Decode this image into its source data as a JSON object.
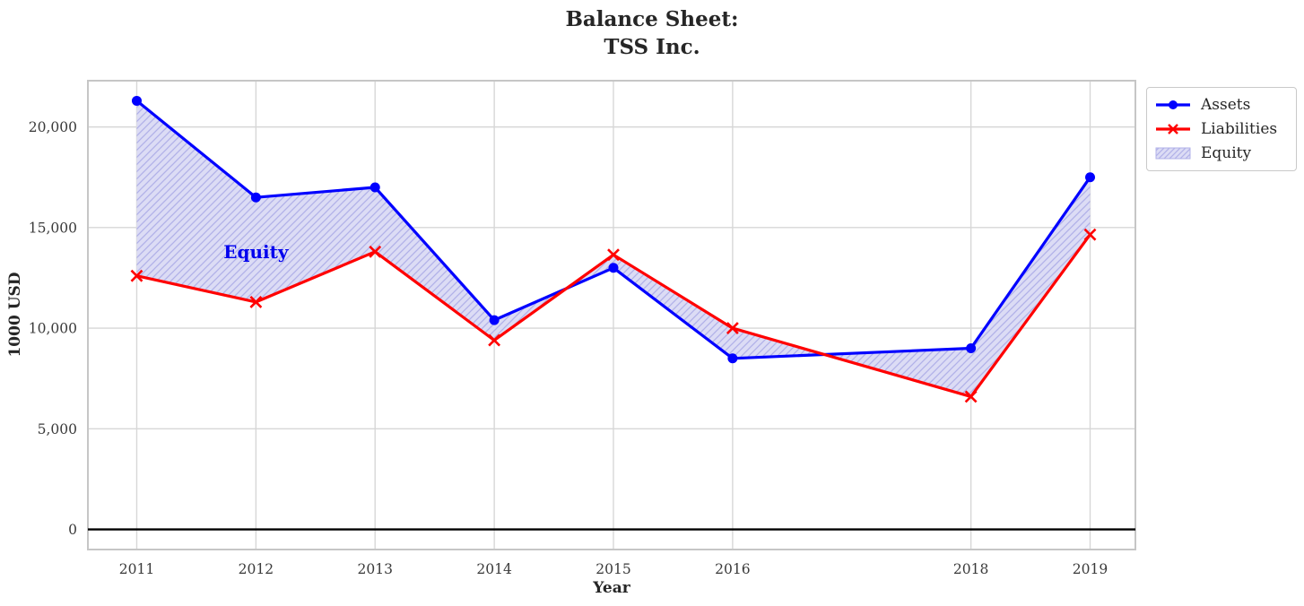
{
  "figure": {
    "title_lines": [
      "Balance Sheet:",
      "TSS Inc."
    ]
  },
  "chart_data": {
    "type": "line",
    "title": "Balance Sheet:\nTSS Inc.",
    "xlabel": "Year",
    "ylabel": "1000 USD",
    "x": [
      2011,
      2012,
      2013,
      2014,
      2015,
      2016,
      2018,
      2019
    ],
    "series": [
      {
        "name": "Assets",
        "color": "#0000ff",
        "marker": "circle",
        "values": [
          21300,
          16500,
          17000,
          10400,
          13000,
          8500,
          9000,
          17500
        ]
      },
      {
        "name": "Liabilities",
        "color": "#ff0000",
        "marker": "x",
        "values": [
          12600,
          11300,
          13800,
          9400,
          13650,
          10000,
          6600,
          14650
        ]
      }
    ],
    "fill_between": {
      "name": "Equity",
      "between": [
        "Assets",
        "Liabilities"
      ],
      "facecolor": "#dcdcf5",
      "hatchcolor": "#b1b1e8",
      "hatch": "///"
    },
    "annotation": {
      "text": "Equity",
      "x": 2012.0,
      "y": 13800,
      "color": "#0000ee"
    },
    "xlim": [
      2010.59,
      2019.38
    ],
    "ylim": [
      -1000,
      22300
    ],
    "xticks": [
      2011,
      2012,
      2013,
      2014,
      2015,
      2016,
      2018,
      2019
    ],
    "yticks": [
      0,
      5000,
      10000,
      15000,
      20000
    ],
    "ytick_labels": [
      "0",
      "5,000",
      "10,000",
      "15,000",
      "20,000"
    ],
    "grid": true,
    "zero_line": true,
    "legend_position": "outside upper right"
  }
}
